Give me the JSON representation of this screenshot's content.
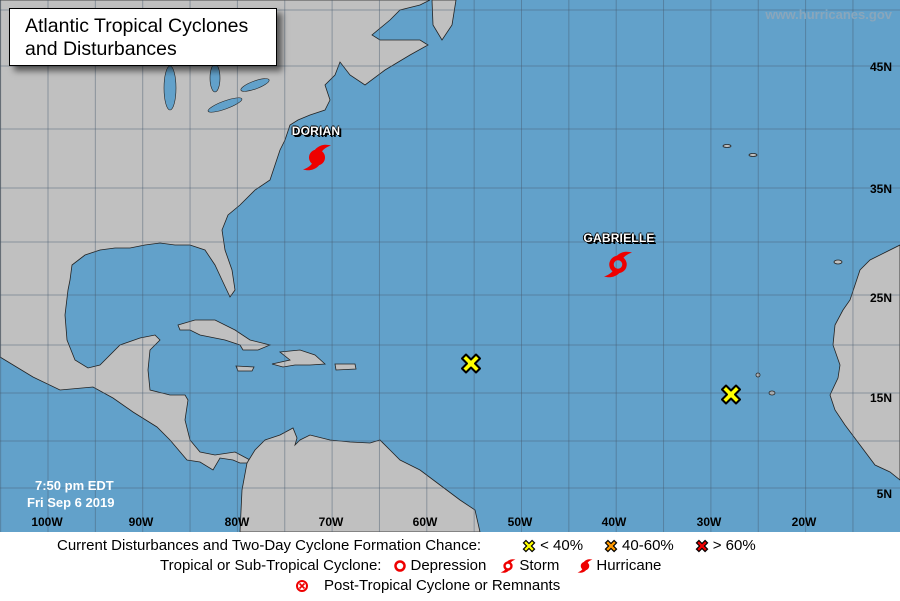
{
  "title": {
    "line1": "Atlantic Tropical Cyclones",
    "line2": "and Disturbances"
  },
  "site": "www.hurricanes.gov",
  "timestamp": {
    "time": "7:50 pm EDT",
    "date": "Fri Sep 6 2019"
  },
  "latitude_labels": [
    "45N",
    "35N",
    "25N",
    "15N",
    "5N"
  ],
  "longitude_labels": [
    "100W",
    "90W",
    "80W",
    "70W",
    "60W",
    "50W",
    "40W",
    "30W",
    "20W"
  ],
  "storms": [
    {
      "name": "DORIAN",
      "type": "hurricane",
      "icon": "hurricane-icon"
    },
    {
      "name": "GABRIELLE",
      "type": "storm",
      "icon": "tropical-storm-icon"
    }
  ],
  "disturbances": [
    {
      "chance": "< 40%",
      "color": "#ffff00"
    },
    {
      "chance": "< 40%",
      "color": "#ffff00"
    }
  ],
  "legend": {
    "disturbance_heading": "Current Disturbances and Two-Day Cyclone Formation Chance:",
    "low": "< 40%",
    "medium": "40-60%",
    "high": "> 60%",
    "cyclone_heading": "Tropical or Sub-Tropical Cyclone:",
    "depression": "Depression",
    "storm": "Storm",
    "hurricane": "Hurricane",
    "post_tropical": "Post-Tropical Cyclone or Remnants"
  },
  "colors": {
    "ocean": "#62a1ca",
    "land": "#c0c0c0",
    "storm_red": "#ee0000",
    "low": "#ffff00",
    "medium": "#ff9900",
    "high": "#ee0000"
  }
}
